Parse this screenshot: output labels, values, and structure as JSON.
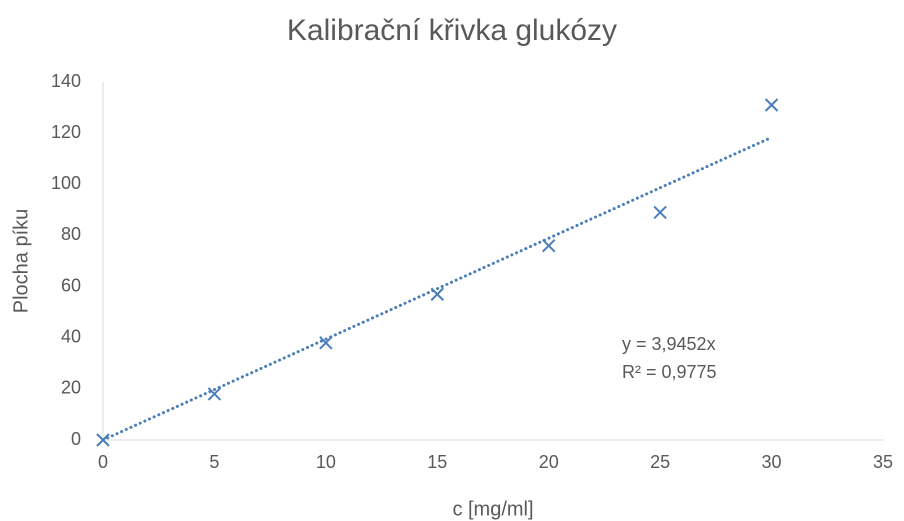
{
  "chart_data": {
    "type": "scatter",
    "title": "Kalibrační křivka glukózy",
    "x_label": "c [mg/ml]",
    "y_label": "Plocha píku",
    "x": [
      0,
      5,
      10,
      15,
      20,
      25,
      30
    ],
    "values": [
      0,
      18,
      38,
      57,
      76,
      89,
      131
    ],
    "color": "#4a7ebb",
    "marker": "x",
    "trendline": {
      "slope": 3.9452,
      "color": "#4a7ebb"
    },
    "annotations": [
      "y = 3,9452x",
      "R² = 0,9775"
    ],
    "xlim": [
      0,
      35
    ],
    "xticks": [
      0,
      5,
      10,
      15,
      20,
      25,
      30,
      35
    ],
    "ylim": [
      0,
      140
    ],
    "yticks": [
      0,
      20,
      40,
      60,
      80,
      100,
      120,
      140
    ],
    "grid": false
  }
}
